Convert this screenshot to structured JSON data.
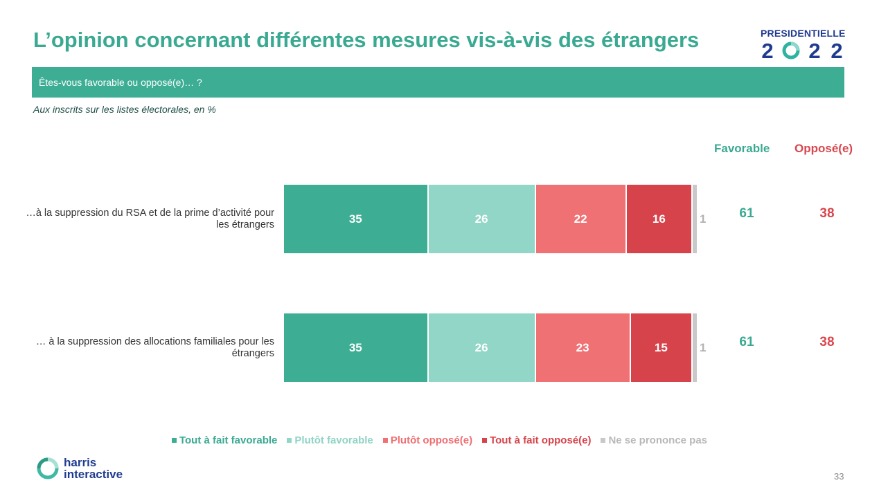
{
  "title": "L’opinion concernant différentes mesures vis-à-vis des étrangers",
  "brand": {
    "word": "PRESIDENTIELLE",
    "year_digits": [
      "2",
      "0",
      "2",
      "2"
    ]
  },
  "question": "Êtes-vous favorable ou opposé(e)… ?",
  "base": "Aux inscrits sur les listes électorales, en %",
  "column_headers": {
    "favorable": "Favorable",
    "oppose": "Opposé(e)"
  },
  "colors": {
    "tout_a_fait_favorable": "#3dae94",
    "plutot_favorable": "#91d6c7",
    "plutot_oppose": "#f07174",
    "tout_a_fait_oppose": "#d6434a",
    "ne_se_prononce_pas": "#c8c8c8"
  },
  "chart_data": {
    "type": "bar",
    "orientation": "horizontal",
    "stacked": true,
    "categories": [
      "…à la suppression du RSA et de la prime d’activité pour les étrangers",
      "… à la suppression des allocations familiales pour les étrangers"
    ],
    "series": [
      {
        "name": "Tout à fait favorable",
        "values": [
          35,
          35
        ]
      },
      {
        "name": "Plutôt favorable",
        "values": [
          26,
          26
        ]
      },
      {
        "name": "Plutôt opposé(e)",
        "values": [
          22,
          23
        ]
      },
      {
        "name": "Tout à fait opposé(e)",
        "values": [
          16,
          15
        ]
      },
      {
        "name": "Ne se prononce pas",
        "values": [
          1,
          1
        ]
      }
    ],
    "totals": {
      "favorable": [
        61,
        61
      ],
      "oppose": [
        38,
        38
      ]
    },
    "xlim": [
      0,
      100
    ],
    "grid": false,
    "legend": "bottom"
  },
  "footer": {
    "company_line1": "harris",
    "company_line2": "interactive",
    "page_number": "33"
  }
}
